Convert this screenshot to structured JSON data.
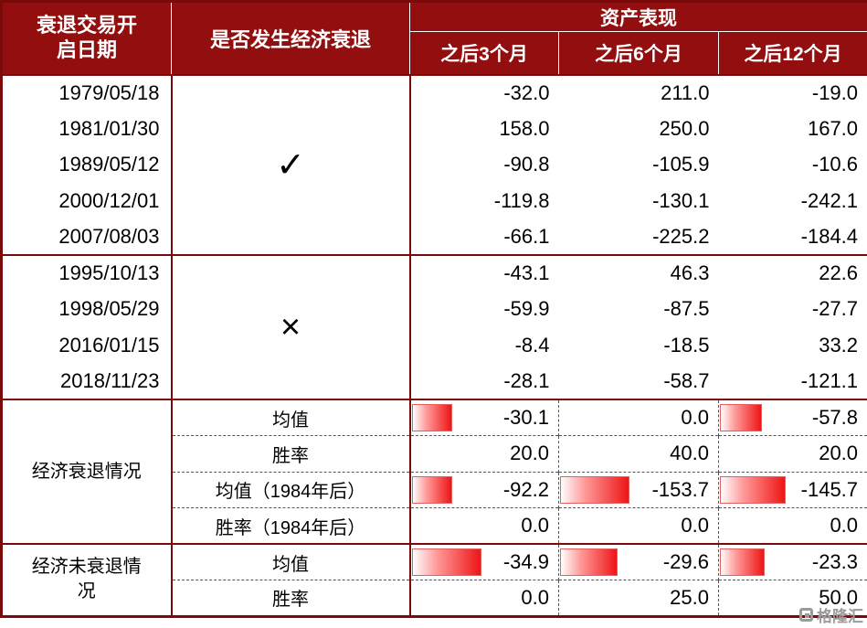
{
  "chart_data": {
    "type": "table",
    "header": {
      "col_date": "衰退交易开启日期",
      "col_recession": "是否发生经济衰退",
      "asset_group": "资产表现",
      "sub_columns": [
        "之后3个月",
        "之后6个月",
        "之后12个月"
      ]
    },
    "recession_yes": {
      "mark": "✓",
      "rows": [
        {
          "date": "1979/05/18",
          "values": [
            "-32.0",
            "211.0",
            "-19.0"
          ]
        },
        {
          "date": "1981/01/30",
          "values": [
            "158.0",
            "250.0",
            "167.0"
          ]
        },
        {
          "date": "1989/05/12",
          "values": [
            "-90.8",
            "-105.9",
            "-10.6"
          ]
        },
        {
          "date": "2000/12/01",
          "values": [
            "-119.8",
            "-130.1",
            "-242.1"
          ]
        },
        {
          "date": "2007/08/03",
          "values": [
            "-66.1",
            "-225.2",
            "-184.4"
          ]
        }
      ]
    },
    "recession_no": {
      "mark": "×",
      "rows": [
        {
          "date": "1995/10/13",
          "values": [
            "-43.1",
            "46.3",
            "22.6"
          ]
        },
        {
          "date": "1998/05/29",
          "values": [
            "-59.9",
            "-87.5",
            "-27.7"
          ]
        },
        {
          "date": "2016/01/15",
          "values": [
            "-8.4",
            "-18.5",
            "33.2"
          ]
        },
        {
          "date": "2018/11/23",
          "values": [
            "-28.1",
            "-58.7",
            "-121.1"
          ]
        }
      ]
    },
    "stats": [
      {
        "section": "经济衰退情况",
        "rows": [
          {
            "label": "均值",
            "values": [
              "-30.1",
              "0.0",
              "-57.8"
            ],
            "bars": [
              44,
              0,
              46
            ]
          },
          {
            "label": "胜率",
            "values": [
              "20.0",
              "40.0",
              "20.0"
            ],
            "bars": [
              0,
              0,
              0
            ]
          },
          {
            "label": "均值（1984年后）",
            "values": [
              "-92.2",
              "-153.7",
              "-145.7"
            ],
            "bars": [
              44,
              76,
              72
            ]
          },
          {
            "label": "胜率（1984年后）",
            "values": [
              "0.0",
              "0.0",
              "0.0"
            ],
            "bars": [
              0,
              0,
              0
            ]
          }
        ]
      },
      {
        "section": "经济未衰退情况",
        "rows": [
          {
            "label": "均值",
            "values": [
              "-34.9",
              "-29.6",
              "-23.3"
            ],
            "bars": [
              76,
              63,
              49
            ]
          },
          {
            "label": "胜率",
            "values": [
              "0.0",
              "25.0",
              "50.0"
            ],
            "bars": [
              0,
              0,
              0
            ]
          }
        ]
      }
    ]
  },
  "colors": {
    "header_bg": "#930f0f",
    "border": "#7a0a0a",
    "bar_gradient_start": "#ffffff",
    "bar_gradient_end": "#ee1515",
    "bar_border": "#e26060",
    "watermark_gray": "#9b9b9b"
  },
  "watermark": {
    "text": "格隆汇"
  }
}
